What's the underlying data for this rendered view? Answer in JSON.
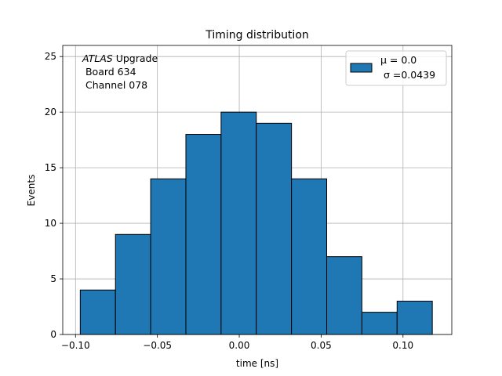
{
  "chart_data": {
    "type": "bar",
    "title": "Timing distribution",
    "xlabel": "time [ns]",
    "ylabel": "Events",
    "xlim": [
      -0.1078,
      0.1298
    ],
    "ylim": [
      0,
      26
    ],
    "xticks": [
      -0.1,
      -0.05,
      0.0,
      0.05,
      0.1
    ],
    "xtick_labels": [
      "−0.10",
      "−0.05",
      "0.00",
      "0.05",
      "0.10"
    ],
    "yticks": [
      0,
      5,
      10,
      15,
      20,
      25
    ],
    "ytick_labels": [
      "0",
      "5",
      "10",
      "15",
      "20",
      "25"
    ],
    "grid": true,
    "bin_edges": [
      -0.0971,
      -0.0756,
      -0.0541,
      -0.0326,
      -0.0111,
      0.0104,
      0.0319,
      0.0534,
      0.0749,
      0.0964,
      0.1179
    ],
    "values": [
      4,
      9,
      14,
      18,
      20,
      19,
      14,
      7,
      2,
      3
    ],
    "bar_color": "#1f77b4",
    "annotation": {
      "line1_italic": "ATLAS",
      "line1_rest": " Upgrade",
      "line2": " Board 634",
      "line3": " Channel 078"
    },
    "legend": {
      "placement": "top-right",
      "line1": "μ = 0.0",
      "line2": " σ =0.0439"
    }
  }
}
